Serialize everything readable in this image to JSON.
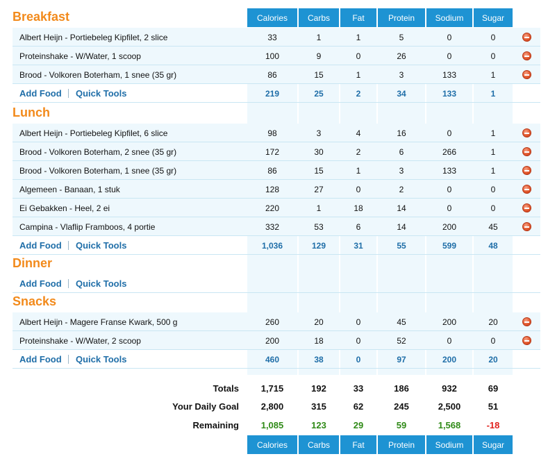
{
  "columns": [
    "Calories",
    "Carbs",
    "Fat",
    "Protein",
    "Sodium",
    "Sugar"
  ],
  "meals": [
    {
      "title": "Breakfast",
      "items": [
        {
          "name": "Albert Heijn - Portiebeleg Kipfilet, 2 slice",
          "values": [
            "33",
            "1",
            "1",
            "5",
            "0",
            "0"
          ]
        },
        {
          "name": "Proteinshake - W/Water, 1 scoop",
          "values": [
            "100",
            "9",
            "0",
            "26",
            "0",
            "0"
          ]
        },
        {
          "name": "Brood - Volkoren Boterham, 1 snee (35 gr)",
          "values": [
            "86",
            "15",
            "1",
            "3",
            "133",
            "1"
          ]
        }
      ],
      "totals": [
        "219",
        "25",
        "2",
        "34",
        "133",
        "1"
      ]
    },
    {
      "title": "Lunch",
      "items": [
        {
          "name": "Albert Heijn - Portiebeleg Kipfilet, 6 slice",
          "values": [
            "98",
            "3",
            "4",
            "16",
            "0",
            "1"
          ]
        },
        {
          "name": "Brood - Volkoren Boterham, 2 snee (35 gr)",
          "values": [
            "172",
            "30",
            "2",
            "6",
            "266",
            "1"
          ]
        },
        {
          "name": "Brood - Volkoren Boterham, 1 snee (35 gr)",
          "values": [
            "86",
            "15",
            "1",
            "3",
            "133",
            "1"
          ]
        },
        {
          "name": "Algemeen - Banaan, 1 stuk",
          "values": [
            "128",
            "27",
            "0",
            "2",
            "0",
            "0"
          ]
        },
        {
          "name": "Ei Gebakken - Heel, 2 ei",
          "values": [
            "220",
            "1",
            "18",
            "14",
            "0",
            "0"
          ]
        },
        {
          "name": "Campina - Vlaflip Framboos, 4 portie",
          "values": [
            "332",
            "53",
            "6",
            "14",
            "200",
            "45"
          ]
        }
      ],
      "totals": [
        "1,036",
        "129",
        "31",
        "55",
        "599",
        "48"
      ]
    },
    {
      "title": "Dinner",
      "items": [],
      "totals": [
        "",
        "",
        "",
        "",
        "",
        ""
      ]
    },
    {
      "title": "Snacks",
      "items": [
        {
          "name": "Albert Heijn - Magere Franse Kwark, 500 g",
          "values": [
            "260",
            "20",
            "0",
            "45",
            "200",
            "20"
          ]
        },
        {
          "name": "Proteinshake - W/Water, 2 scoop",
          "values": [
            "200",
            "18",
            "0",
            "52",
            "0",
            "0"
          ]
        }
      ],
      "totals": [
        "460",
        "38",
        "0",
        "97",
        "200",
        "20"
      ]
    }
  ],
  "actions": {
    "add_food": "Add Food",
    "quick_tools": "Quick Tools"
  },
  "summary": {
    "totals_label": "Totals",
    "totals": [
      "1,715",
      "192",
      "33",
      "186",
      "932",
      "69"
    ],
    "goal_label": "Your Daily Goal",
    "goal": [
      "2,800",
      "315",
      "62",
      "245",
      "2,500",
      "51"
    ],
    "remaining_label": "Remaining",
    "remaining": [
      "1,085",
      "123",
      "29",
      "59",
      "1,568",
      "-18"
    ]
  },
  "colors": {
    "accent_orange": "#f28a1b",
    "header_blue": "#1e93d3",
    "link_blue": "#1f6ea8",
    "positive_green": "#2f8a17",
    "negative_red": "#e0201b"
  }
}
